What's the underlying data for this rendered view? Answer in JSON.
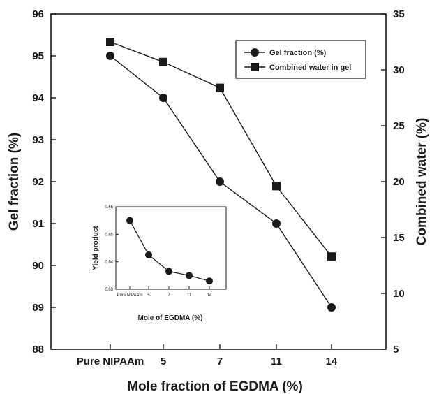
{
  "chart_data": [
    {
      "type": "line",
      "categories": [
        "Pure NIPAAm",
        "5",
        "7",
        "11",
        "14"
      ],
      "xlabel": "Mole fraction of EGDMA (%)",
      "ylabel_left": "Gel fraction (%)",
      "ylabel_right": "Combined water (%)",
      "ylim_left": [
        88,
        96
      ],
      "ylim_right": [
        5,
        35
      ],
      "yticks_left": [
        "88",
        "89",
        "90",
        "91",
        "92",
        "93",
        "94",
        "95",
        "96"
      ],
      "yticks_right": [
        "5",
        "10",
        "15",
        "20",
        "25",
        "30",
        "35"
      ],
      "grid": false,
      "legend_position": "top-right",
      "series": [
        {
          "name": "Gel fraction (%)",
          "axis": "left",
          "marker": "circle",
          "values": [
            95.0,
            94.0,
            92.0,
            91.0,
            89.0
          ]
        },
        {
          "name": "Combined water in gel",
          "axis": "right",
          "marker": "square",
          "values": [
            32.5,
            30.7,
            28.4,
            19.6,
            13.3
          ]
        }
      ]
    },
    {
      "type": "line",
      "inset": true,
      "categories": [
        "Pure NIPAAm",
        "5",
        "7",
        "11",
        "14"
      ],
      "xlabel": "Mole of EGDMA (%)",
      "ylabel": "Yield product",
      "ylim": [
        0.63,
        0.66
      ],
      "yticks": [
        "0.63",
        "0.64",
        "0.65",
        "0.66"
      ],
      "series": [
        {
          "values": [
            0.655,
            0.6425,
            0.6365,
            0.635,
            0.633
          ]
        }
      ]
    }
  ]
}
